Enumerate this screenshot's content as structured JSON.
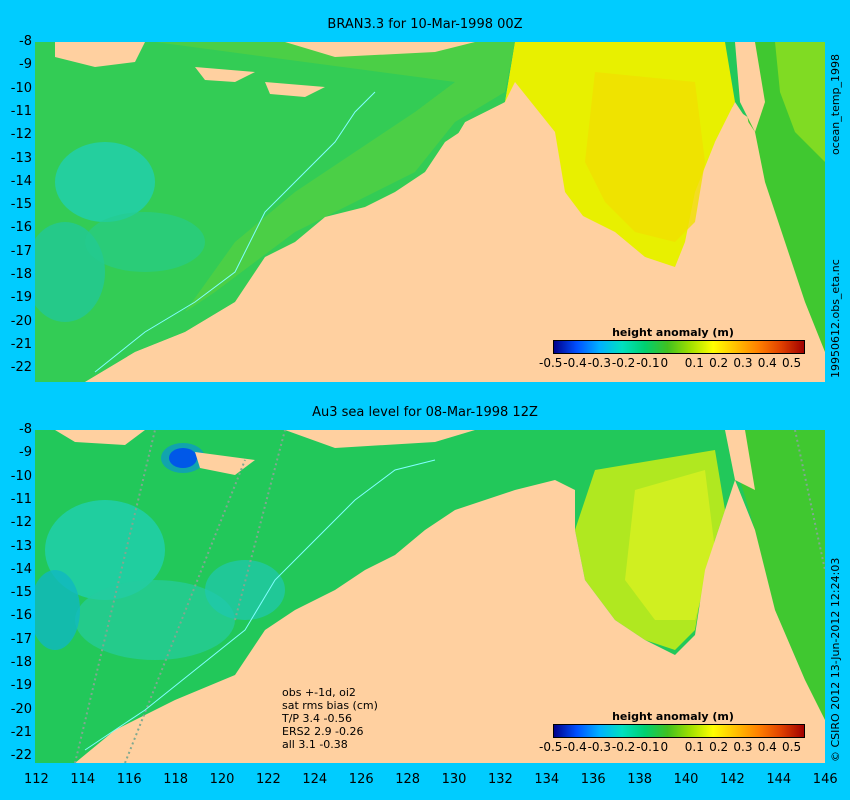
{
  "top": {
    "title": "BRAN3.3 for 10-Mar-1998 00Z",
    "legend_title": "height anomaly (m)",
    "right_text_upper": "ocean_temp_1998",
    "right_text_lower": "19950612.obs_eta.nc"
  },
  "bottom": {
    "title": "Au3 sea level  for 08-Mar-1998 12Z",
    "legend_title": "height anomaly (m)",
    "right_text": "© CSIRO 2012  13-Jun-2012 12:24:03",
    "stats": [
      "obs +-1d, oi2",
      "sat rms bias (cm)",
      "T/P  3.4 -0.56",
      "ERS2 2.9 -0.26",
      "all 3.1 -0.38"
    ]
  },
  "legend_ticks": [
    "-0.5",
    "-0.4",
    "-0.3",
    "-0.2",
    "-0.1",
    "0",
    "0.1",
    "0.2",
    "0.3",
    "0.4",
    "0.5"
  ],
  "lat_ticks": [
    "-8",
    "-9",
    "-10",
    "-11",
    "-12",
    "-13",
    "-14",
    "-15",
    "-16",
    "-17",
    "-18",
    "-19",
    "-20",
    "-21",
    "-22"
  ],
  "lon_ticks": [
    "112",
    "114",
    "116",
    "118",
    "120",
    "122",
    "124",
    "126",
    "128",
    "130",
    "132",
    "134",
    "136",
    "138",
    "140",
    "142",
    "144",
    "146"
  ],
  "colors": {
    "background": "#00ccff",
    "land": "#ffd0a0",
    "sea_green": "#22c85a",
    "positive": "#e8f000",
    "negative": "#00b0ff"
  }
}
